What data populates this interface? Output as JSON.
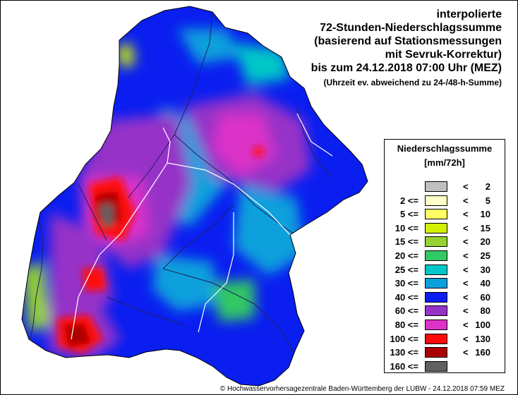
{
  "title": {
    "lines": [
      "interpolierte",
      "72-Stunden-Niederschlagssumme",
      "(basierend auf Stationsmessungen",
      "mit Sevruk-Korrektur)",
      "bis zum 24.12.2018 07:00 Uhr (MEZ)"
    ],
    "note": "(Uhrzeit ev. abweichend zu 24-/48-h-Summe)"
  },
  "legend": {
    "title": "Niederschlagssumme",
    "unit": "[mm/72h]",
    "classes": [
      {
        "low": "",
        "op_low": "",
        "high": "2",
        "color": "#c0c0c0"
      },
      {
        "low": "2",
        "op_low": "<=",
        "high": "5",
        "color": "#ffffc8"
      },
      {
        "low": "5",
        "op_low": "<=",
        "high": "10",
        "color": "#ffff64"
      },
      {
        "low": "10",
        "op_low": "<=",
        "high": "15",
        "color": "#d2f000"
      },
      {
        "low": "15",
        "op_low": "<=",
        "high": "20",
        "color": "#96d232"
      },
      {
        "low": "20",
        "op_low": "<=",
        "high": "25",
        "color": "#32c864"
      },
      {
        "low": "25",
        "op_low": "<=",
        "high": "30",
        "color": "#00c8c8"
      },
      {
        "low": "30",
        "op_low": "<=",
        "high": "40",
        "color": "#0aa0dc"
      },
      {
        "low": "40",
        "op_low": "<=",
        "high": "60",
        "color": "#0a1ef0"
      },
      {
        "low": "60",
        "op_low": "<=",
        "high": "80",
        "color": "#9632c8"
      },
      {
        "low": "80",
        "op_low": "<=",
        "high": "100",
        "color": "#dc32c8"
      },
      {
        "low": "100",
        "op_low": "<=",
        "high": "130",
        "color": "#ff0a0a"
      },
      {
        "low": "130",
        "op_low": "<=",
        "high": "160",
        "color": "#aa0000"
      },
      {
        "low": "160",
        "op_low": "<=",
        "high": "",
        "color": "#606060"
      }
    ]
  },
  "copyright": "© Hochwasservorhersagezentrale Baden-Württemberg der LUBW - 24.12.2018 07:59 MEZ",
  "map_colors": {
    "outline": "#000000",
    "rivers": "#202060",
    "borders": "#ffffff"
  }
}
